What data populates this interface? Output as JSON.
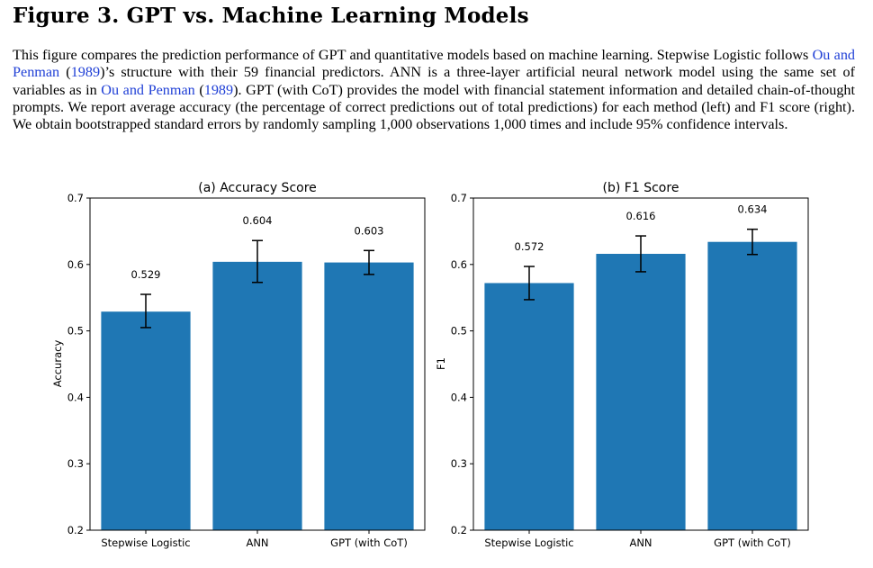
{
  "figure": {
    "title": "Figure 3. GPT vs. Machine Learning Models",
    "caption": {
      "p1": "This figure compares the prediction performance of GPT and quantitative models based on machine learning. Stepwise Logistic follows ",
      "cite1": "Ou and Penman",
      "p2": " (",
      "cite1_year": "1989",
      "p3": ")’s structure with their 59 financial predictors. ANN is a three-layer artificial neural network model using the same set of variables as in ",
      "cite2": "Ou and Penman",
      "p4": " (",
      "cite2_year": "1989",
      "p5": "). GPT (with CoT) provides the model with financial statement information and detailed chain-of-thought prompts. We report average accuracy (the percentage of correct predictions out of total predictions) for each method (left) and F1 score (right). We obtain bootstrapped standard errors by randomly sampling 1,000 observations 1,000 times and include 95% confidence intervals."
    }
  },
  "colors": {
    "bar": "#1f77b4",
    "error_bar": "#000000",
    "citation": "#1f3fd6"
  },
  "chart_data": [
    {
      "type": "bar",
      "title": "(a) Accuracy Score",
      "xlabel": "",
      "ylabel": "Accuracy",
      "categories": [
        "Stepwise Logistic",
        "ANN",
        "GPT (with CoT)"
      ],
      "values": [
        0.529,
        0.604,
        0.603
      ],
      "value_labels": [
        "0.529",
        "0.604",
        "0.603"
      ],
      "ci_low": [
        0.505,
        0.573,
        0.585
      ],
      "ci_high": [
        0.555,
        0.636,
        0.621
      ],
      "ylim": [
        0.2,
        0.7
      ],
      "yticks": [
        "0.2",
        "0.3",
        "0.4",
        "0.5",
        "0.6",
        "0.7"
      ],
      "grid": false
    },
    {
      "type": "bar",
      "title": "(b) F1 Score",
      "xlabel": "",
      "ylabel": "F1",
      "categories": [
        "Stepwise Logistic",
        "ANN",
        "GPT (with CoT)"
      ],
      "values": [
        0.572,
        0.616,
        0.634
      ],
      "value_labels": [
        "0.572",
        "0.616",
        "0.634"
      ],
      "ci_low": [
        0.547,
        0.589,
        0.615
      ],
      "ci_high": [
        0.597,
        0.643,
        0.653
      ],
      "ylim": [
        0.2,
        0.7
      ],
      "yticks": [
        "0.2",
        "0.3",
        "0.4",
        "0.5",
        "0.6",
        "0.7"
      ],
      "grid": false
    }
  ]
}
